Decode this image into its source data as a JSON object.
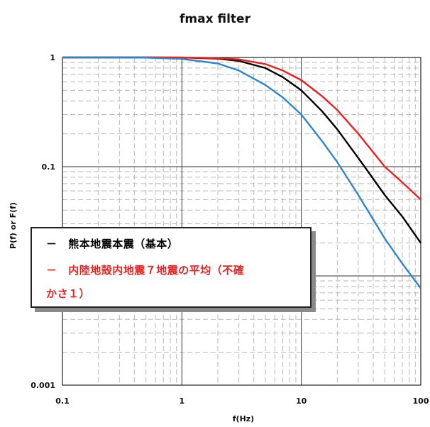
{
  "chart_data": {
    "type": "line",
    "title": "fmax filter",
    "xlabel": "f(Hz)",
    "ylabel": "P(f) or F(f)",
    "xscale": "log",
    "yscale": "log",
    "xlim": [
      0.1,
      100
    ],
    "ylim": [
      0.001,
      1
    ],
    "x_ticks": [
      "0.1",
      "1",
      "10",
      "100"
    ],
    "y_ticks": [
      "1",
      "0.1",
      "0.01",
      "0.001"
    ],
    "grid": true,
    "legend_position": "center-left",
    "x": [
      0.1,
      0.2,
      0.5,
      1,
      2,
      3,
      5,
      7,
      10,
      15,
      20,
      30,
      50,
      70,
      100
    ],
    "series": [
      {
        "name": "熊本地震本震（基本）",
        "color": "#000000",
        "values": [
          1.0,
          1.0,
          1.0,
          0.998,
          0.975,
          0.93,
          0.8,
          0.66,
          0.5,
          0.32,
          0.22,
          0.12,
          0.055,
          0.035,
          0.02
        ]
      },
      {
        "name": "内陸地殻内地震７地震の平均（不確かさ１）",
        "color": "#e8201f",
        "values": [
          1.0,
          1.0,
          1.0,
          0.999,
          0.985,
          0.96,
          0.87,
          0.76,
          0.62,
          0.44,
          0.33,
          0.2,
          0.1,
          0.072,
          0.05
        ]
      },
      {
        "name": "",
        "color": "#2f86c8",
        "values": [
          1.0,
          1.0,
          0.995,
          0.97,
          0.88,
          0.76,
          0.56,
          0.43,
          0.3,
          0.17,
          0.11,
          0.055,
          0.022,
          0.013,
          0.0077
        ]
      }
    ]
  },
  "legend": {
    "items": [
      {
        "marker": "－",
        "text": "熊本地震本震（基本）",
        "color": "#000000"
      },
      {
        "marker": "－",
        "text": "内陸地殻内地震７地震の平均（不確",
        "color": "#e8201f"
      },
      {
        "marker": "",
        "text": "かさ１）",
        "color": "#e8201f"
      }
    ]
  }
}
